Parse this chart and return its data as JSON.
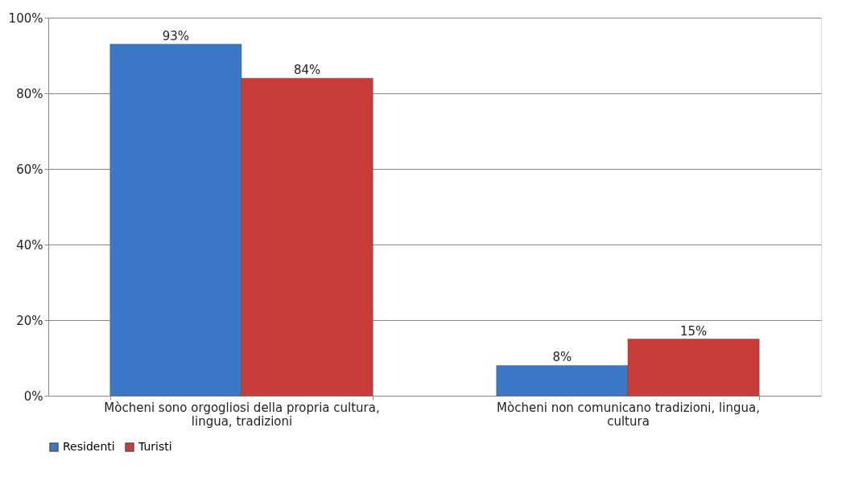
{
  "chart_data": {
    "type": "bar",
    "categories": [
      "Mòcheni sono orgogliosi della propria cultura, lingua, tradizioni",
      "Mòcheni non comunicano tradizioni, lingua, cultura"
    ],
    "series": [
      {
        "name": "Residenti",
        "color": "#3c78c8",
        "values": [
          93,
          8
        ],
        "value_labels": [
          "93%",
          "8%"
        ]
      },
      {
        "name": "Turisti",
        "color": "#c83c3a",
        "values": [
          84,
          15
        ],
        "value_labels": [
          "84%",
          "15%"
        ]
      }
    ],
    "ylim": [
      0,
      100
    ],
    "yticks": [
      {
        "value": 0,
        "label": "0%"
      },
      {
        "value": 20,
        "label": "20%"
      },
      {
        "value": 40,
        "label": "40%"
      },
      {
        "value": 60,
        "label": "60%"
      },
      {
        "value": 80,
        "label": "80%"
      },
      {
        "value": 100,
        "label": "100%"
      }
    ],
    "grid": "y",
    "legend": "bottom"
  }
}
